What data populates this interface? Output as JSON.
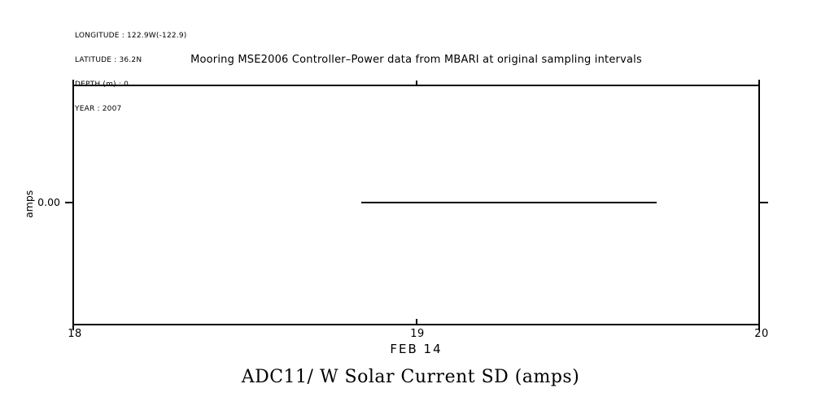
{
  "header": {
    "meta_lines": [
      "LONGITUDE : 122.9W(-122.9)",
      "LATITUDE : 36.2N",
      "DEPTH (m) : 0",
      "YEAR : 2007"
    ]
  },
  "chart_data": {
    "type": "line",
    "title": "Mooring MSE2006 Controller–Power data from MBARI at original sampling intervals",
    "subtitle": "ADC11/ W Solar Current SD (amps)",
    "xlabel": "FEB 14",
    "ylabel": "amps",
    "x_ticks": [
      "18",
      "19",
      "20"
    ],
    "xlim": [
      18,
      20
    ],
    "y_ticks": [
      "0.00"
    ],
    "grid": false,
    "legend": "none",
    "line_color": "#000000",
    "background": "#ffffff",
    "series": [
      {
        "name": "ADC11/ W Solar Current SD (amps)",
        "x": [
          18.84,
          19.7
        ],
        "y": [
          0.0,
          0.0
        ]
      }
    ]
  }
}
